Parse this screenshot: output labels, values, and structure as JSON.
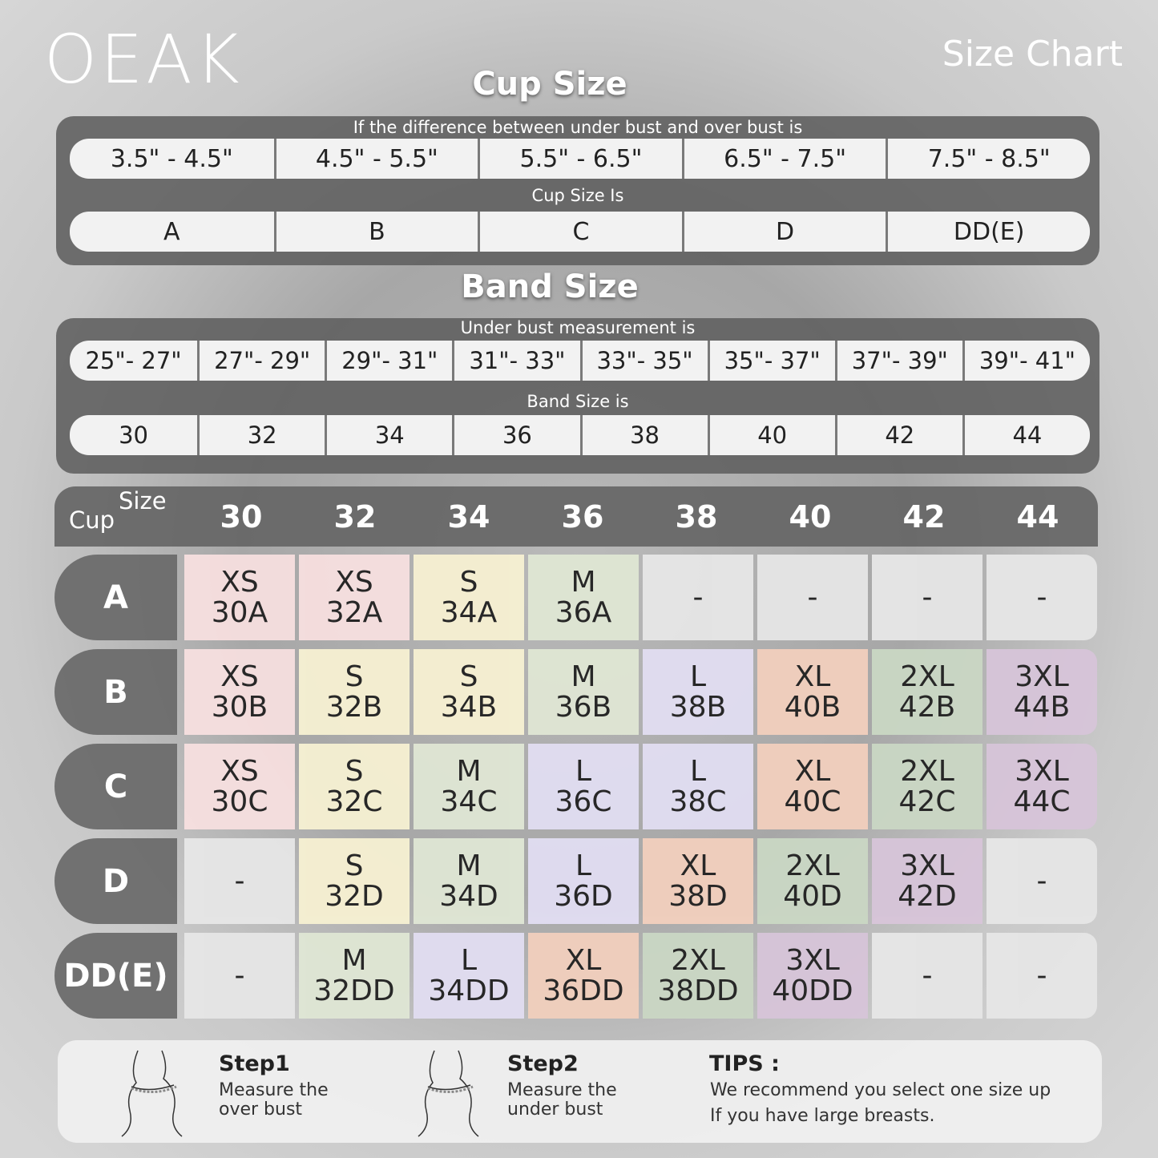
{
  "brand": "OEAK",
  "title": "Size Chart",
  "cup_section": {
    "heading": "Cup Size",
    "caption": "If the  difference between under bust and over bust is",
    "ranges": [
      "3.5\" -  4.5\"",
      "4.5\" -  5.5\"",
      "5.5\" -  6.5\"",
      "6.5\" -  7.5\"",
      "7.5\" -  8.5\""
    ],
    "result_caption": "Cup Size Is",
    "results": [
      "A",
      "B",
      "C",
      "D",
      "DD(E)"
    ]
  },
  "band_section": {
    "heading": "Band Size",
    "caption": "Under bust measurement is",
    "ranges": [
      "25\"- 27\"",
      "27\"- 29\"",
      "29\"- 31\"",
      "31\"- 33\"",
      "33\"- 35\"",
      "35\"- 37\"",
      "37\"- 39\"",
      "39\"- 41\""
    ],
    "result_caption": "Band Size is",
    "results": [
      "30",
      "32",
      "34",
      "36",
      "38",
      "40",
      "42",
      "44"
    ]
  },
  "table": {
    "corner_size": "Size",
    "corner_cup": "Cup",
    "columns": [
      "30",
      "32",
      "34",
      "36",
      "38",
      "40",
      "42",
      "44"
    ],
    "rows": [
      {
        "label": "A",
        "cells": [
          {
            "size": "XS",
            "code": "30A"
          },
          {
            "size": "XS",
            "code": "32A"
          },
          {
            "size": "S",
            "code": "34A"
          },
          {
            "size": "M",
            "code": "36A"
          },
          {
            "size": "-"
          },
          {
            "size": "-"
          },
          {
            "size": "-"
          },
          {
            "size": "-"
          }
        ]
      },
      {
        "label": "B",
        "cells": [
          {
            "size": "XS",
            "code": "30B"
          },
          {
            "size": "S",
            "code": "32B"
          },
          {
            "size": "S",
            "code": "34B"
          },
          {
            "size": "M",
            "code": "36B"
          },
          {
            "size": "L",
            "code": "38B"
          },
          {
            "size": "XL",
            "code": "40B"
          },
          {
            "size": "2XL",
            "code": "42B"
          },
          {
            "size": "3XL",
            "code": "44B"
          }
        ]
      },
      {
        "label": "C",
        "cells": [
          {
            "size": "XS",
            "code": "30C"
          },
          {
            "size": "S",
            "code": "32C"
          },
          {
            "size": "M",
            "code": "34C"
          },
          {
            "size": "L",
            "code": "36C"
          },
          {
            "size": "L",
            "code": "38C"
          },
          {
            "size": "XL",
            "code": "40C"
          },
          {
            "size": "2XL",
            "code": "42C"
          },
          {
            "size": "3XL",
            "code": "44C"
          }
        ]
      },
      {
        "label": "D",
        "cells": [
          {
            "size": "-"
          },
          {
            "size": "S",
            "code": "32D"
          },
          {
            "size": "M",
            "code": "34D"
          },
          {
            "size": "L",
            "code": "36D"
          },
          {
            "size": "XL",
            "code": "38D"
          },
          {
            "size": "2XL",
            "code": "40D"
          },
          {
            "size": "3XL",
            "code": "42D"
          },
          {
            "size": "-"
          }
        ]
      },
      {
        "label": "DD(E)",
        "cells": [
          {
            "size": "-"
          },
          {
            "size": "M",
            "code": "32DD"
          },
          {
            "size": "L",
            "code": "34DD"
          },
          {
            "size": "XL",
            "code": "36DD"
          },
          {
            "size": "2XL",
            "code": "38DD"
          },
          {
            "size": "3XL",
            "code": "40DD"
          },
          {
            "size": "-"
          },
          {
            "size": "-"
          }
        ]
      }
    ],
    "colors": {
      "XS": "#f6dfdf",
      "S": "#f6f0d2",
      "M": "#dfe6d4",
      "L": "#e1ddf1",
      "XL": "#f1cfbd",
      "2XL": "#cad7c4",
      "3XL": "#d7c5d9",
      "-": "#e6e6e6"
    }
  },
  "steps": [
    {
      "title": "Step1",
      "lines": [
        "Measure the",
        "over bust"
      ]
    },
    {
      "title": "Step2",
      "lines": [
        "Measure the",
        "under bust"
      ]
    }
  ],
  "tips": {
    "title": "TIPS :",
    "lines": [
      "We recommend you select one size up",
      "If you have large breasts."
    ]
  }
}
